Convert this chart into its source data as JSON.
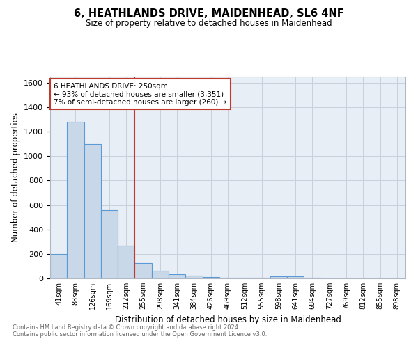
{
  "title1": "6, HEATHLANDS DRIVE, MAIDENHEAD, SL6 4NF",
  "title2": "Size of property relative to detached houses in Maidenhead",
  "xlabel": "Distribution of detached houses by size in Maidenhead",
  "ylabel": "Number of detached properties",
  "bin_labels": [
    "41sqm",
    "83sqm",
    "126sqm",
    "169sqm",
    "212sqm",
    "255sqm",
    "298sqm",
    "341sqm",
    "384sqm",
    "426sqm",
    "469sqm",
    "512sqm",
    "555sqm",
    "598sqm",
    "641sqm",
    "684sqm",
    "727sqm",
    "769sqm",
    "812sqm",
    "855sqm",
    "898sqm"
  ],
  "bin_values": [
    200,
    1280,
    1100,
    560,
    270,
    125,
    65,
    35,
    20,
    10,
    5,
    5,
    5,
    15,
    15,
    5,
    0,
    0,
    0,
    0,
    0
  ],
  "bar_color": "#c8d8e8",
  "bar_edge_color": "#5b9bd5",
  "vline_color": "#c0392b",
  "annotation_text": "6 HEATHLANDS DRIVE: 250sqm\n← 93% of detached houses are smaller (3,351)\n7% of semi-detached houses are larger (260) →",
  "annotation_box_color": "white",
  "annotation_box_edge": "#c0392b",
  "ylim": [
    0,
    1650
  ],
  "yticks": [
    0,
    200,
    400,
    600,
    800,
    1000,
    1200,
    1400,
    1600
  ],
  "grid_color": "#c8d0dc",
  "background_color": "#e8eef5",
  "footer1": "Contains HM Land Registry data © Crown copyright and database right 2024.",
  "footer2": "Contains public sector information licensed under the Open Government Licence v3.0."
}
